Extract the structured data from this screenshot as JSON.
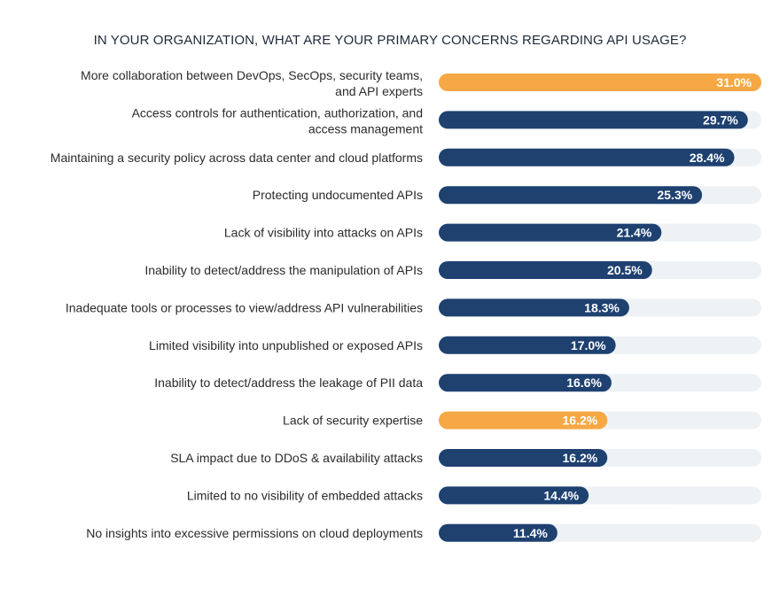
{
  "chart_data": {
    "type": "bar",
    "orientation": "horizontal",
    "title": "IN YOUR ORGANIZATION, WHAT ARE YOUR PRIMARY CONCERNS REGARDING API USAGE?",
    "xlim": [
      0,
      31.0
    ],
    "grid": false,
    "legend": "none",
    "colors": {
      "highlight": "#f5a843",
      "default": "#1e4170",
      "track": "#eef2f4"
    },
    "categories": [
      [
        "More collaboration between DevOps, SecOps, security teams,",
        "and API experts"
      ],
      [
        "Access controls for authentication, authorization, and",
        "access management"
      ],
      [
        "Maintaining a security policy across data center and cloud platforms"
      ],
      [
        "Protecting undocumented APIs"
      ],
      [
        "Lack of visibility into attacks on APIs"
      ],
      [
        "Inability to detect/address the manipulation of APIs"
      ],
      [
        "Inadequate tools or processes to view/address API vulnerabilities"
      ],
      [
        "Limited visibility into unpublished or exposed APIs"
      ],
      [
        "Inability to detect/address the leakage of PII data"
      ],
      [
        "Lack of security expertise"
      ],
      [
        "SLA impact due to DDoS & availability attacks"
      ],
      [
        "Limited to no visibility of embedded attacks"
      ],
      [
        "No insights into excessive permissions on cloud deployments"
      ]
    ],
    "values": [
      31.0,
      29.7,
      28.4,
      25.3,
      21.4,
      20.5,
      18.3,
      17.0,
      16.6,
      16.2,
      16.2,
      14.4,
      11.4
    ],
    "value_labels": [
      "31.0%",
      "29.7%",
      "28.4%",
      "25.3%",
      "21.4%",
      "20.5%",
      "18.3%",
      "17.0%",
      "16.6%",
      "16.2%",
      "16.2%",
      "14.4%",
      "11.4%"
    ],
    "highlighted": [
      true,
      false,
      false,
      false,
      false,
      false,
      false,
      false,
      false,
      true,
      false,
      false,
      false
    ]
  }
}
